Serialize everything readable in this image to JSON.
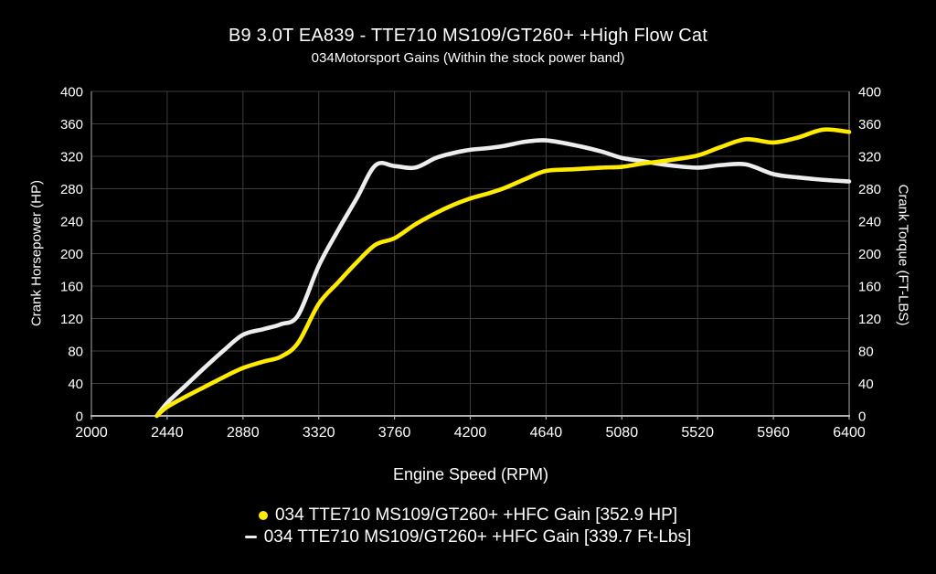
{
  "colors": {
    "background": "#000000",
    "text": "#ffffff",
    "grid": "#3d3d3d",
    "axis": "#b0b0b0",
    "hp_curve": "#ffeb00",
    "torque_curve": "#ededed"
  },
  "chart_data": {
    "type": "line",
    "title": "B9 3.0T EA839 - TTE710 MS109/GT260+ +High Flow Cat",
    "subtitle": "034Motorsport Gains (Within the stock power band)",
    "xlabel": "Engine Speed (RPM)",
    "ylabel_left": "Crank Horsepower (HP)",
    "ylabel_right": "Crank Torque (FT-LBS)",
    "xlim": [
      2000,
      6400
    ],
    "ylim": [
      0,
      400
    ],
    "x_ticks": [
      2000,
      2440,
      2880,
      3320,
      3760,
      4200,
      4640,
      5080,
      5520,
      5960,
      6400
    ],
    "y_ticks": [
      0,
      40,
      80,
      120,
      160,
      200,
      240,
      280,
      320,
      360,
      400
    ],
    "grid": true,
    "legend_position": "bottom",
    "series": [
      {
        "name": "034 TTE710 MS109/GT260+ +HFC Gain [352.9 HP]",
        "axis": "left",
        "unit": "HP",
        "peak_value": 352.9,
        "color": "#ffeb00",
        "marker": "circle",
        "x": [
          2380,
          2440,
          2550,
          2660,
          2770,
          2880,
          3000,
          3100,
          3200,
          3320,
          3430,
          3540,
          3650,
          3760,
          3880,
          4000,
          4100,
          4200,
          4300,
          4400,
          4520,
          4640,
          4800,
          4960,
          5080,
          5200,
          5350,
          5520,
          5650,
          5800,
          5960,
          6100,
          6250,
          6400
        ],
        "y": [
          0,
          11,
          24,
          36,
          48,
          59,
          67,
          73,
          90,
          138,
          164,
          189,
          211,
          219,
          236,
          250,
          260,
          268,
          274,
          281,
          292,
          302,
          304,
          306,
          307,
          311,
          315,
          321,
          331,
          341,
          337,
          343,
          352.9,
          350
        ]
      },
      {
        "name": "034 TTE710 MS109/GT260+ +HFC Gain [339.7 Ft-Lbs]",
        "axis": "right",
        "unit": "Ft-Lbs",
        "peak_value": 339.7,
        "color": "#ededed",
        "marker": "dash",
        "x": [
          2380,
          2440,
          2550,
          2660,
          2770,
          2880,
          3000,
          3100,
          3200,
          3320,
          3430,
          3540,
          3650,
          3760,
          3880,
          4000,
          4100,
          4200,
          4300,
          4400,
          4520,
          4640,
          4800,
          4960,
          5080,
          5200,
          5350,
          5520,
          5650,
          5800,
          5960,
          6100,
          6250,
          6400
        ],
        "y": [
          0,
          16,
          38,
          60,
          81,
          100,
          107,
          113,
          124,
          185,
          228,
          268,
          309,
          308,
          306,
          318,
          324,
          328,
          330,
          333,
          338,
          339.7,
          334,
          326,
          318,
          314,
          309,
          306,
          309,
          310,
          298,
          294,
          291,
          289
        ]
      }
    ]
  }
}
